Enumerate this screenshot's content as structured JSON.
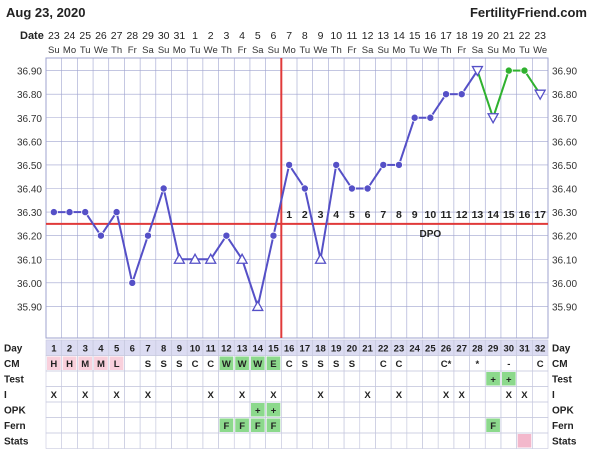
{
  "header": {
    "date": "Aug 23, 2020",
    "brand": "FertilityFriend.com",
    "row_label": "Date"
  },
  "colors": {
    "blue_line": "#5550c7",
    "green_line": "#2fb12f",
    "coverline": "#e03a3a",
    "grid": "#9fa3cf",
    "day_row_bg": "#dcdcf2",
    "green_cell": "#8cd98c",
    "pink_cell": "#f3b8cc",
    "period_cell": "#f9d0dc"
  },
  "chart_data": {
    "type": "line",
    "title": "",
    "dates": [
      "23",
      "24",
      "25",
      "26",
      "27",
      "28",
      "29",
      "30",
      "31",
      "1",
      "2",
      "3",
      "4",
      "5",
      "6",
      "7",
      "8",
      "9",
      "10",
      "11",
      "12",
      "13",
      "14",
      "15",
      "16",
      "17",
      "18",
      "19",
      "20",
      "21",
      "22",
      "23"
    ],
    "weekdays": [
      "Su",
      "Mo",
      "Tu",
      "We",
      "Th",
      "Fr",
      "Sa",
      "Su",
      "Mo",
      "Tu",
      "We",
      "Th",
      "Fr",
      "Sa",
      "Su",
      "Mo",
      "Tu",
      "We",
      "Th",
      "Fr",
      "Sa",
      "Su",
      "Mo",
      "Tu",
      "We",
      "Th",
      "Fr",
      "Sa",
      "Su",
      "Mo",
      "Tu",
      "We"
    ],
    "cycle_days": [
      "1",
      "2",
      "3",
      "4",
      "5",
      "6",
      "7",
      "8",
      "9",
      "10",
      "11",
      "12",
      "13",
      "14",
      "15",
      "16",
      "17",
      "18",
      "19",
      "20",
      "21",
      "22",
      "23",
      "24",
      "25",
      "26",
      "27",
      "28",
      "29",
      "30",
      "31",
      "32"
    ],
    "temperatures": [
      36.3,
      36.3,
      36.3,
      36.2,
      36.3,
      36.0,
      36.2,
      36.4,
      36.1,
      36.1,
      36.1,
      36.2,
      36.1,
      35.9,
      36.2,
      36.5,
      36.4,
      36.1,
      36.5,
      36.4,
      36.4,
      36.5,
      36.5,
      36.7,
      36.7,
      36.8,
      36.8,
      36.9,
      36.7,
      36.9,
      36.9,
      36.8
    ],
    "markers": [
      "o",
      "o",
      "o",
      "o",
      "o",
      "o",
      "o",
      "o",
      "t",
      "t",
      "t",
      "o",
      "t",
      "t",
      "o",
      "o",
      "o",
      "t",
      "o",
      "o",
      "o",
      "o",
      "o",
      "o",
      "o",
      "o",
      "o",
      "v",
      "v",
      "o",
      "o",
      "v"
    ],
    "green_from_day": 28,
    "ylim": [
      35.8,
      37.0
    ],
    "yticks": [
      "36.90",
      "36.80",
      "36.70",
      "36.60",
      "36.50",
      "36.40",
      "36.30",
      "36.20",
      "36.10",
      "36.00",
      "35.90"
    ],
    "coverline": 36.25,
    "ovulation_day": 15,
    "dpo_labels": [
      "1",
      "2",
      "3",
      "4",
      "5",
      "6",
      "7",
      "8",
      "9",
      "10",
      "11",
      "12",
      "13",
      "14",
      "15",
      "16",
      "17"
    ],
    "dpo_text": "DPO",
    "grid": true
  },
  "rows": [
    {
      "label": "CM",
      "values": [
        "H",
        "H",
        "M",
        "M",
        "L",
        "",
        "S",
        "S",
        "S",
        "C",
        "C",
        "W",
        "W",
        "W",
        "E",
        "C",
        "S",
        "S",
        "S",
        "S",
        "",
        "C",
        "C",
        "",
        "",
        "C*",
        "",
        "*",
        "",
        "-",
        "",
        "C"
      ]
    },
    {
      "label": "Test",
      "values": [
        "",
        "",
        "",
        "",
        "",
        "",
        "",
        "",
        "",
        "",
        "",
        "",
        "",
        "",
        "",
        "",
        "",
        "",
        "",
        "",
        "",
        "",
        "",
        "",
        "",
        "",
        "",
        "",
        "+",
        "+",
        "",
        ""
      ]
    },
    {
      "label": "I",
      "values": [
        "X",
        "",
        "X",
        "",
        "X",
        "",
        "X",
        "",
        "",
        "",
        "X",
        "",
        "X",
        "",
        "X",
        "",
        "",
        "X",
        "",
        "",
        "X",
        "",
        "X",
        "",
        "",
        "X",
        "X",
        "",
        "",
        "X",
        "X",
        ""
      ]
    },
    {
      "label": "OPK",
      "values": [
        "",
        "",
        "",
        "",
        "",
        "",
        "",
        "",
        "",
        "",
        "",
        "",
        "",
        "+",
        "+",
        "",
        "",
        "",
        "",
        "",
        "",
        "",
        "",
        "",
        "",
        "",
        "",
        "",
        "",
        "",
        "",
        ""
      ]
    },
    {
      "label": "Fern",
      "values": [
        "",
        "",
        "",
        "",
        "",
        "",
        "",
        "",
        "",
        "",
        "",
        "F",
        "F",
        "F",
        "F",
        "",
        "",
        "",
        "",
        "",
        "",
        "",
        "",
        "",
        "",
        "",
        "",
        "",
        "F",
        "",
        "",
        ""
      ]
    },
    {
      "label": "Stats",
      "values": [
        "",
        "",
        "",
        "",
        "",
        "",
        "",
        "",
        "",
        "",
        "",
        "",
        "",
        "",
        "",
        "",
        "",
        "",
        "",
        "",
        "",
        "",
        "",
        "",
        "",
        "",
        "",
        "",
        "",
        "",
        "",
        ""
      ]
    }
  ],
  "row_styles": {
    "period_days": [
      1,
      2,
      3,
      4,
      5
    ],
    "green_cells": {
      "CM": [
        12,
        13,
        14,
        15
      ],
      "Test": [
        29,
        30
      ],
      "OPK": [
        14,
        15
      ],
      "Fern": [
        12,
        13,
        14,
        15,
        29
      ]
    },
    "pink_cells": {
      "Stats": [
        31
      ]
    }
  },
  "day_label": "Day"
}
